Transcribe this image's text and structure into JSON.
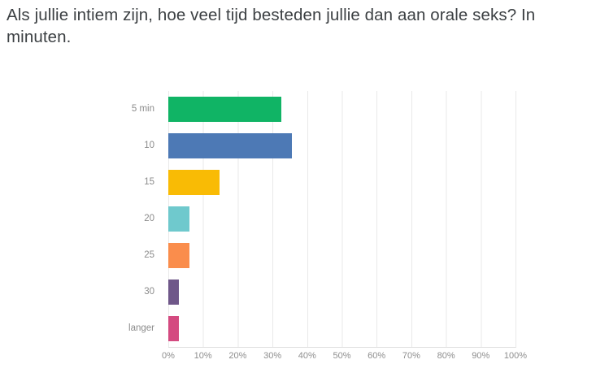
{
  "title": "Als jullie intiem zijn, hoe veel tijd besteden jullie dan aan orale seks? In minuten.",
  "chart_data": {
    "type": "bar",
    "orientation": "horizontal",
    "title": "Als jullie intiem zijn, hoe veel tijd besteden jullie dan aan orale seks? In minuten.",
    "categories": [
      "5 min",
      "10",
      "15",
      "20",
      "25",
      "30",
      "langer"
    ],
    "values": [
      32.5,
      35.5,
      14.7,
      6,
      6,
      3,
      3
    ],
    "value_unit": "%",
    "bar_colors": [
      "#10b465",
      "#4d79b5",
      "#f9bb05",
      "#6fc9cd",
      "#fa8d4c",
      "#6f5789",
      "#d44a80"
    ],
    "xlim": [
      0,
      100
    ],
    "x_tick_labels": [
      "0%",
      "10%",
      "20%",
      "30%",
      "40%",
      "50%",
      "60%",
      "70%",
      "80%",
      "90%",
      "100%"
    ],
    "grid": "vertical",
    "legend": "none"
  }
}
